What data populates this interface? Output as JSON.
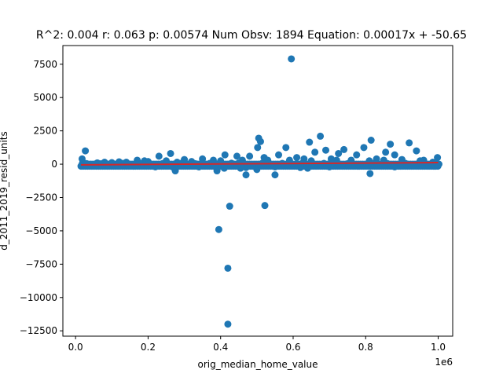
{
  "chart_data": {
    "type": "scatter",
    "title": "R^2: 0.004 r: 0.063 p: 0.00574 Num Obsv: 1894 Equation: 0.00017x + -50.65",
    "xlabel": "orig_median_home_value",
    "ylabel": "d_2011_2019_resid_units",
    "x_offset_label": "1e6",
    "xlim": [
      -35000,
      1040000
    ],
    "ylim": [
      -12900,
      8900
    ],
    "x_ticks": [
      0,
      200000,
      400000,
      600000,
      800000,
      1000000
    ],
    "x_tick_labels": [
      "0.0",
      "0.2",
      "0.4",
      "0.6",
      "0.8",
      "1.0"
    ],
    "y_ticks": [
      -12500,
      -10000,
      -7500,
      -5000,
      -2500,
      0,
      2500,
      5000,
      7500
    ],
    "y_tick_labels": [
      "−12500",
      "−10000",
      "−7500",
      "−5000",
      "−2500",
      "0",
      "2500",
      "5000",
      "7500"
    ],
    "grid": false,
    "point_color": "#1f77b4",
    "fit_color": "#d62728",
    "fit_line": {
      "slope": 0.00017,
      "intercept": -50.65,
      "x_range": [
        15000,
        1000000
      ]
    },
    "points": [
      [
        595000,
        7900
      ],
      [
        27000,
        1000
      ],
      [
        18000,
        400
      ],
      [
        20000,
        150
      ],
      [
        505000,
        1950
      ],
      [
        510000,
        1700
      ],
      [
        502000,
        1250
      ],
      [
        675000,
        2100
      ],
      [
        645000,
        1650
      ],
      [
        580000,
        1250
      ],
      [
        690000,
        1050
      ],
      [
        740000,
        1100
      ],
      [
        795000,
        1250
      ],
      [
        815000,
        1800
      ],
      [
        868000,
        1500
      ],
      [
        920000,
        1600
      ],
      [
        940000,
        1000
      ],
      [
        998000,
        500
      ],
      [
        855000,
        900
      ],
      [
        725000,
        800
      ],
      [
        775000,
        700
      ],
      [
        262000,
        800
      ],
      [
        230000,
        600
      ],
      [
        412000,
        700
      ],
      [
        445000,
        600
      ],
      [
        480000,
        600
      ],
      [
        520000,
        500
      ],
      [
        560000,
        700
      ],
      [
        660000,
        900
      ],
      [
        880000,
        700
      ],
      [
        170000,
        300
      ],
      [
        190000,
        250
      ],
      [
        300000,
        350
      ],
      [
        350000,
        400
      ],
      [
        380000,
        300
      ],
      [
        610000,
        500
      ],
      [
        630000,
        400
      ],
      [
        705000,
        400
      ],
      [
        760000,
        300
      ],
      [
        830000,
        400
      ],
      [
        900000,
        350
      ],
      [
        960000,
        300
      ],
      [
        985000,
        150
      ],
      [
        60000,
        100
      ],
      [
        80000,
        150
      ],
      [
        100000,
        120
      ],
      [
        120000,
        180
      ],
      [
        140000,
        150
      ],
      [
        200000,
        200
      ],
      [
        250000,
        250
      ],
      [
        280000,
        150
      ],
      [
        320000,
        200
      ],
      [
        400000,
        250
      ],
      [
        460000,
        300
      ],
      [
        530000,
        300
      ],
      [
        590000,
        300
      ],
      [
        650000,
        250
      ],
      [
        720000,
        300
      ],
      [
        810000,
        250
      ],
      [
        850000,
        300
      ],
      [
        950000,
        250
      ],
      [
        40000,
        -100
      ],
      [
        90000,
        -120
      ],
      [
        160000,
        -150
      ],
      [
        220000,
        -200
      ],
      [
        270000,
        -250
      ],
      [
        340000,
        -200
      ],
      [
        410000,
        -300
      ],
      [
        470000,
        -250
      ],
      [
        550000,
        -200
      ],
      [
        620000,
        -250
      ],
      [
        700000,
        -200
      ],
      [
        780000,
        -150
      ],
      [
        880000,
        -200
      ],
      [
        970000,
        -100
      ],
      [
        990000,
        -150
      ],
      [
        275000,
        -500
      ],
      [
        390000,
        -500
      ],
      [
        470000,
        -800
      ],
      [
        550000,
        -800
      ],
      [
        812000,
        -700
      ],
      [
        455000,
        -300
      ],
      [
        500000,
        -400
      ],
      [
        640000,
        -300
      ],
      [
        395000,
        -4900
      ],
      [
        425000,
        -3150
      ],
      [
        522000,
        -3100
      ],
      [
        420000,
        -7800
      ],
      [
        420000,
        -12000
      ],
      [
        30000,
        50
      ],
      [
        50000,
        -50
      ],
      [
        70000,
        30
      ],
      [
        110000,
        -40
      ],
      [
        130000,
        60
      ],
      [
        150000,
        -30
      ],
      [
        180000,
        40
      ],
      [
        210000,
        -60
      ],
      [
        240000,
        50
      ],
      [
        260000,
        -40
      ],
      [
        290000,
        60
      ],
      [
        310000,
        -50
      ],
      [
        330000,
        40
      ],
      [
        360000,
        -30
      ],
      [
        370000,
        60
      ],
      [
        420000,
        -40
      ],
      [
        430000,
        80
      ],
      [
        440000,
        -60
      ],
      [
        450000,
        90
      ],
      [
        465000,
        40
      ],
      [
        490000,
        -60
      ],
      [
        515000,
        80
      ],
      [
        540000,
        -40
      ],
      [
        570000,
        60
      ],
      [
        600000,
        -50
      ],
      [
        625000,
        70
      ],
      [
        670000,
        -30
      ],
      [
        685000,
        60
      ],
      [
        730000,
        -50
      ],
      [
        750000,
        40
      ],
      [
        790000,
        -40
      ],
      [
        820000,
        60
      ],
      [
        840000,
        -30
      ],
      [
        860000,
        50
      ],
      [
        890000,
        -40
      ],
      [
        910000,
        60
      ],
      [
        930000,
        -30
      ],
      [
        945000,
        50
      ],
      [
        975000,
        -40
      ],
      [
        995000,
        0
      ]
    ]
  }
}
